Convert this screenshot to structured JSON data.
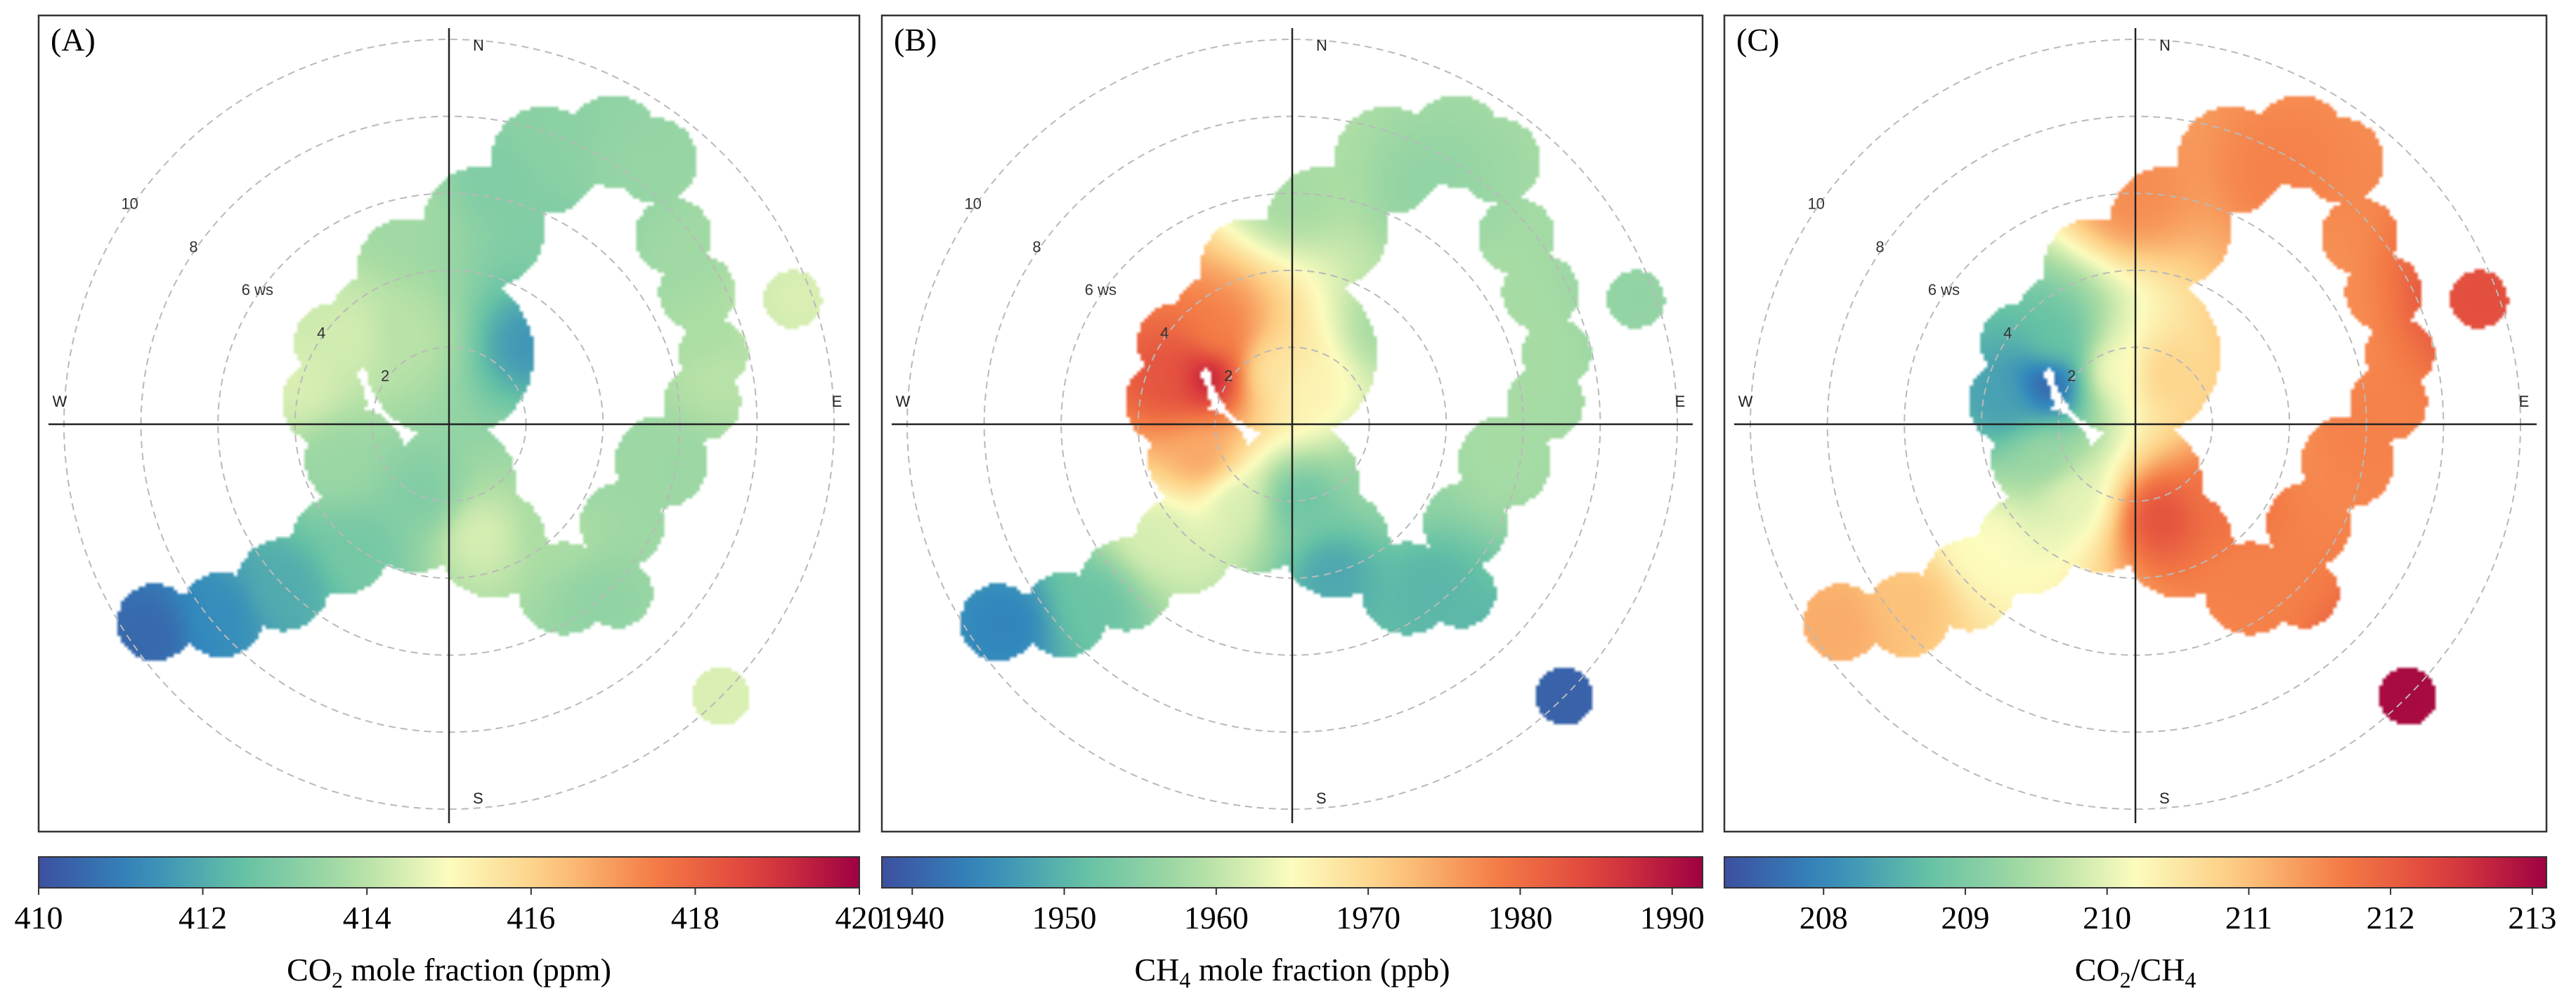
{
  "chart_data": [
    {
      "type": "polar-heatmap",
      "panel_label": "(A)",
      "direction_labels": {
        "n": "N",
        "s": "S",
        "e": "E",
        "w": "W"
      },
      "radial_axis": {
        "unit": "ws",
        "max": 10,
        "ticks": [
          2,
          4,
          6,
          8,
          10
        ]
      },
      "colorbar": {
        "min": 410,
        "max": 420,
        "ticks": [
          410,
          412,
          414,
          416,
          418,
          420
        ],
        "tick_labels": [
          "410",
          "412",
          "414",
          "416",
          "418",
          "420"
        ],
        "label_main": "CO",
        "label_sub": "2",
        "label_rest": " mole fraction (ppm)"
      },
      "points": [
        {
          "wd": 45,
          "ws": 3.0,
          "value": 411.5
        },
        {
          "wd": 30,
          "ws": 5.5,
          "value": 413.0
        },
        {
          "wd": 10,
          "ws": 6.5,
          "value": 413.0
        },
        {
          "wd": 20,
          "ws": 8.0,
          "value": 413.2
        },
        {
          "wd": 35,
          "ws": 8.3,
          "value": 413.4
        },
        {
          "wd": 55,
          "ws": 7.5,
          "value": 413.6
        },
        {
          "wd": 70,
          "ws": 7.0,
          "value": 413.8
        },
        {
          "wd": 80,
          "ws": 7.0,
          "value": 414.0
        },
        {
          "wd": 100,
          "ws": 6.0,
          "value": 413.5
        },
        {
          "wd": 110,
          "ws": 3.5,
          "value": 413.5
        },
        {
          "wd": 135,
          "ws": 4.0,
          "value": 413.8
        },
        {
          "wd": 140,
          "ws": 6.0,
          "value": 413.3
        },
        {
          "wd": 165,
          "ws": 3.0,
          "value": 414.5
        },
        {
          "wd": 200,
          "ws": 2.0,
          "value": 413.0
        },
        {
          "wd": 215,
          "ws": 4.0,
          "value": 412.8
        },
        {
          "wd": 225,
          "ws": 6.0,
          "value": 412.0
        },
        {
          "wd": 230,
          "ws": 7.8,
          "value": 411.3
        },
        {
          "wd": 235,
          "ws": 9.5,
          "value": 410.5
        },
        {
          "wd": 250,
          "ws": 3.0,
          "value": 413.5
        },
        {
          "wd": 285,
          "ws": 4.0,
          "value": 414.5
        },
        {
          "wd": 310,
          "ws": 3.5,
          "value": 414.4
        },
        {
          "wd": 335,
          "ws": 2.5,
          "value": 414.0
        },
        {
          "wd": 350,
          "ws": 5.5,
          "value": 413.6
        },
        {
          "wd": 70,
          "ws": 9.5,
          "value": 414.5
        },
        {
          "wd": 135,
          "ws": 10.0,
          "value": 414.5
        }
      ]
    },
    {
      "type": "polar-heatmap",
      "panel_label": "(B)",
      "direction_labels": {
        "n": "N",
        "s": "S",
        "e": "E",
        "w": "W"
      },
      "radial_axis": {
        "unit": "ws",
        "max": 10,
        "ticks": [
          2,
          4,
          6,
          8,
          10
        ]
      },
      "colorbar": {
        "min": 1938,
        "max": 1992,
        "ticks": [
          1940,
          1950,
          1960,
          1970,
          1980,
          1990
        ],
        "tick_labels": [
          "1940",
          "1950",
          "1960",
          "1970",
          "1980",
          "1990"
        ],
        "label_main": "CH",
        "label_sub": "4",
        "label_rest": " mole fraction (ppb)"
      },
      "points": [
        {
          "wd": 300,
          "ws": 2.5,
          "value": 1990
        },
        {
          "wd": 290,
          "ws": 3.5,
          "value": 1983
        },
        {
          "wd": 320,
          "ws": 3.0,
          "value": 1978
        },
        {
          "wd": 250,
          "ws": 2.5,
          "value": 1975
        },
        {
          "wd": 340,
          "ws": 1.5,
          "value": 1968
        },
        {
          "wd": 20,
          "ws": 1.0,
          "value": 1966
        },
        {
          "wd": 0,
          "ws": 6.0,
          "value": 1958
        },
        {
          "wd": 30,
          "ws": 7.0,
          "value": 1956
        },
        {
          "wd": 45,
          "ws": 3.5,
          "value": 1958
        },
        {
          "wd": 70,
          "ws": 6.5,
          "value": 1958
        },
        {
          "wd": 100,
          "ws": 5.5,
          "value": 1958
        },
        {
          "wd": 120,
          "ws": 3.0,
          "value": 1956
        },
        {
          "wd": 140,
          "ws": 5.5,
          "value": 1950
        },
        {
          "wd": 165,
          "ws": 4.0,
          "value": 1948
        },
        {
          "wd": 175,
          "ws": 2.0,
          "value": 1952
        },
        {
          "wd": 215,
          "ws": 2.5,
          "value": 1962
        },
        {
          "wd": 230,
          "ws": 4.5,
          "value": 1962
        },
        {
          "wd": 228,
          "ws": 7.0,
          "value": 1952
        },
        {
          "wd": 235,
          "ws": 9.0,
          "value": 1944
        },
        {
          "wd": 70,
          "ws": 9.5,
          "value": 1956
        },
        {
          "wd": 135,
          "ws": 10.0,
          "value": 1940
        }
      ]
    },
    {
      "type": "polar-heatmap",
      "panel_label": "(C)",
      "direction_labels": {
        "n": "N",
        "s": "S",
        "e": "E",
        "w": "W"
      },
      "radial_axis": {
        "unit": "ws",
        "max": 10,
        "ticks": [
          2,
          4,
          6,
          8,
          10
        ]
      },
      "colorbar": {
        "min": 207.3,
        "max": 213.1,
        "ticks": [
          208,
          209,
          210,
          211,
          212,
          213
        ],
        "tick_labels": [
          "208",
          "209",
          "210",
          "211",
          "212",
          "213"
        ],
        "label_main": "CO",
        "label_sub": "2",
        "label_rest": "/CH",
        "label_sub2": "4"
      },
      "points": [
        {
          "wd": 295,
          "ws": 2.5,
          "value": 207.4
        },
        {
          "wd": 280,
          "ws": 3.5,
          "value": 208.3
        },
        {
          "wd": 315,
          "ws": 3.0,
          "value": 208.8
        },
        {
          "wd": 250,
          "ws": 2.5,
          "value": 209.3
        },
        {
          "wd": 340,
          "ws": 1.5,
          "value": 210.2
        },
        {
          "wd": 30,
          "ws": 1.5,
          "value": 210.8
        },
        {
          "wd": 0,
          "ws": 6.0,
          "value": 211.5
        },
        {
          "wd": 30,
          "ws": 7.5,
          "value": 211.6
        },
        {
          "wd": 60,
          "ws": 5.0,
          "value": 211.5
        },
        {
          "wd": 90,
          "ws": 6.0,
          "value": 211.6
        },
        {
          "wd": 130,
          "ws": 3.0,
          "value": 211.8
        },
        {
          "wd": 145,
          "ws": 5.0,
          "value": 211.6
        },
        {
          "wd": 165,
          "ws": 2.5,
          "value": 212.2
        },
        {
          "wd": 220,
          "ws": 2.5,
          "value": 210.0
        },
        {
          "wd": 230,
          "ws": 5.0,
          "value": 210.2
        },
        {
          "wd": 232,
          "ws": 7.5,
          "value": 211.0
        },
        {
          "wd": 236,
          "ws": 9.3,
          "value": 211.2
        },
        {
          "wd": 70,
          "ws": 9.5,
          "value": 212.2
        },
        {
          "wd": 135,
          "ws": 10.0,
          "value": 213.0
        }
      ]
    }
  ]
}
